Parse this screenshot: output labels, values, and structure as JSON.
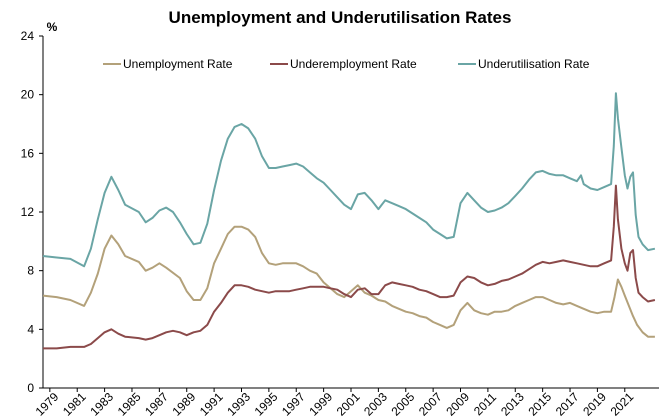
{
  "chart_data": {
    "type": "line",
    "title": "Unemployment and Underutilisation Rates",
    "y_unit": "%",
    "xlabel": "",
    "ylabel": "",
    "xlim": [
      1978.5,
      2023.5
    ],
    "ylim": [
      0,
      24
    ],
    "y_ticks": [
      0,
      4,
      8,
      12,
      16,
      20,
      24
    ],
    "x_ticks": [
      "1979",
      "1981",
      "1983",
      "1985",
      "1987",
      "1989",
      "1991",
      "1993",
      "1995",
      "1997",
      "1999",
      "2001",
      "2003",
      "2005",
      "2007",
      "2009",
      "2011",
      "2013",
      "2015",
      "2017",
      "2019",
      "2021"
    ],
    "grid": false,
    "legend_position": "top",
    "series": [
      {
        "name": "Unemployment Rate",
        "color": "#b3a17a",
        "points": [
          [
            1978.5,
            6.3
          ],
          [
            1979.5,
            6.2
          ],
          [
            1980.5,
            6.0
          ],
          [
            1981.5,
            5.6
          ],
          [
            1982.0,
            6.5
          ],
          [
            1982.5,
            7.8
          ],
          [
            1983.0,
            9.5
          ],
          [
            1983.5,
            10.4
          ],
          [
            1984.0,
            9.8
          ],
          [
            1984.5,
            9.0
          ],
          [
            1985.5,
            8.6
          ],
          [
            1986.0,
            8.0
          ],
          [
            1986.5,
            8.2
          ],
          [
            1987.0,
            8.5
          ],
          [
            1987.5,
            8.2
          ],
          [
            1988.5,
            7.5
          ],
          [
            1989.0,
            6.6
          ],
          [
            1989.5,
            6.0
          ],
          [
            1990.0,
            6.0
          ],
          [
            1990.5,
            6.8
          ],
          [
            1991.0,
            8.5
          ],
          [
            1991.5,
            9.5
          ],
          [
            1992.0,
            10.5
          ],
          [
            1992.5,
            11.0
          ],
          [
            1993.0,
            11.0
          ],
          [
            1993.5,
            10.8
          ],
          [
            1994.0,
            10.3
          ],
          [
            1994.5,
            9.2
          ],
          [
            1995.0,
            8.5
          ],
          [
            1995.5,
            8.4
          ],
          [
            1996.0,
            8.5
          ],
          [
            1996.5,
            8.5
          ],
          [
            1997.0,
            8.5
          ],
          [
            1997.5,
            8.3
          ],
          [
            1998.0,
            8.0
          ],
          [
            1998.5,
            7.8
          ],
          [
            1999.0,
            7.2
          ],
          [
            1999.5,
            6.8
          ],
          [
            2000.0,
            6.4
          ],
          [
            2000.5,
            6.2
          ],
          [
            2001.0,
            6.6
          ],
          [
            2001.5,
            7.0
          ],
          [
            2002.0,
            6.5
          ],
          [
            2002.5,
            6.3
          ],
          [
            2003.0,
            6.0
          ],
          [
            2003.5,
            5.9
          ],
          [
            2004.0,
            5.6
          ],
          [
            2004.5,
            5.4
          ],
          [
            2005.0,
            5.2
          ],
          [
            2005.5,
            5.1
          ],
          [
            2006.0,
            4.9
          ],
          [
            2006.5,
            4.8
          ],
          [
            2007.0,
            4.5
          ],
          [
            2007.5,
            4.3
          ],
          [
            2008.0,
            4.1
          ],
          [
            2008.5,
            4.3
          ],
          [
            2009.0,
            5.3
          ],
          [
            2009.5,
            5.8
          ],
          [
            2010.0,
            5.3
          ],
          [
            2010.5,
            5.1
          ],
          [
            2011.0,
            5.0
          ],
          [
            2011.5,
            5.2
          ],
          [
            2012.0,
            5.2
          ],
          [
            2012.5,
            5.3
          ],
          [
            2013.0,
            5.6
          ],
          [
            2013.5,
            5.8
          ],
          [
            2014.0,
            6.0
          ],
          [
            2014.5,
            6.2
          ],
          [
            2015.0,
            6.2
          ],
          [
            2015.5,
            6.0
          ],
          [
            2016.0,
            5.8
          ],
          [
            2016.5,
            5.7
          ],
          [
            2017.0,
            5.8
          ],
          [
            2017.5,
            5.6
          ],
          [
            2018.0,
            5.4
          ],
          [
            2018.5,
            5.2
          ],
          [
            2019.0,
            5.1
          ],
          [
            2019.5,
            5.2
          ],
          [
            2020.0,
            5.2
          ],
          [
            2020.25,
            6.2
          ],
          [
            2020.5,
            7.4
          ],
          [
            2020.75,
            6.9
          ],
          [
            2021.0,
            6.3
          ],
          [
            2021.3,
            5.6
          ],
          [
            2021.6,
            4.9
          ],
          [
            2021.9,
            4.3
          ],
          [
            2022.3,
            3.8
          ],
          [
            2022.7,
            3.5
          ],
          [
            2023.2,
            3.5
          ]
        ]
      },
      {
        "name": "Underemployment Rate",
        "color": "#8b4a4a",
        "points": [
          [
            1978.5,
            2.7
          ],
          [
            1979.5,
            2.7
          ],
          [
            1980.5,
            2.8
          ],
          [
            1981.5,
            2.8
          ],
          [
            1982.0,
            3.0
          ],
          [
            1982.5,
            3.4
          ],
          [
            1983.0,
            3.8
          ],
          [
            1983.5,
            4.0
          ],
          [
            1984.0,
            3.7
          ],
          [
            1984.5,
            3.5
          ],
          [
            1985.5,
            3.4
          ],
          [
            1986.0,
            3.3
          ],
          [
            1986.5,
            3.4
          ],
          [
            1987.0,
            3.6
          ],
          [
            1987.5,
            3.8
          ],
          [
            1988.0,
            3.9
          ],
          [
            1988.5,
            3.8
          ],
          [
            1989.0,
            3.6
          ],
          [
            1989.5,
            3.8
          ],
          [
            1990.0,
            3.9
          ],
          [
            1990.5,
            4.3
          ],
          [
            1991.0,
            5.2
          ],
          [
            1991.5,
            5.8
          ],
          [
            1992.0,
            6.5
          ],
          [
            1992.5,
            7.0
          ],
          [
            1993.0,
            7.0
          ],
          [
            1993.5,
            6.9
          ],
          [
            1994.0,
            6.7
          ],
          [
            1994.5,
            6.6
          ],
          [
            1995.0,
            6.5
          ],
          [
            1995.5,
            6.6
          ],
          [
            1996.0,
            6.6
          ],
          [
            1996.5,
            6.6
          ],
          [
            1997.0,
            6.7
          ],
          [
            1997.5,
            6.8
          ],
          [
            1998.0,
            6.9
          ],
          [
            1998.5,
            6.9
          ],
          [
            1999.0,
            6.9
          ],
          [
            1999.5,
            6.8
          ],
          [
            2000.0,
            6.7
          ],
          [
            2000.5,
            6.4
          ],
          [
            2001.0,
            6.2
          ],
          [
            2001.5,
            6.7
          ],
          [
            2002.0,
            6.8
          ],
          [
            2002.5,
            6.4
          ],
          [
            2003.0,
            6.4
          ],
          [
            2003.5,
            7.0
          ],
          [
            2004.0,
            7.2
          ],
          [
            2004.5,
            7.1
          ],
          [
            2005.0,
            7.0
          ],
          [
            2005.5,
            6.9
          ],
          [
            2006.0,
            6.7
          ],
          [
            2006.5,
            6.6
          ],
          [
            2007.0,
            6.4
          ],
          [
            2007.5,
            6.2
          ],
          [
            2008.0,
            6.2
          ],
          [
            2008.5,
            6.3
          ],
          [
            2009.0,
            7.2
          ],
          [
            2009.5,
            7.6
          ],
          [
            2010.0,
            7.5
          ],
          [
            2010.5,
            7.2
          ],
          [
            2011.0,
            7.0
          ],
          [
            2011.5,
            7.1
          ],
          [
            2012.0,
            7.3
          ],
          [
            2012.5,
            7.4
          ],
          [
            2013.0,
            7.6
          ],
          [
            2013.5,
            7.8
          ],
          [
            2014.0,
            8.1
          ],
          [
            2014.5,
            8.4
          ],
          [
            2015.0,
            8.6
          ],
          [
            2015.5,
            8.5
          ],
          [
            2016.0,
            8.6
          ],
          [
            2016.5,
            8.7
          ],
          [
            2017.0,
            8.6
          ],
          [
            2017.5,
            8.5
          ],
          [
            2018.0,
            8.4
          ],
          [
            2018.5,
            8.3
          ],
          [
            2019.0,
            8.3
          ],
          [
            2019.5,
            8.5
          ],
          [
            2020.0,
            8.7
          ],
          [
            2020.2,
            11.0
          ],
          [
            2020.35,
            13.8
          ],
          [
            2020.5,
            11.5
          ],
          [
            2020.75,
            9.5
          ],
          [
            2021.0,
            8.5
          ],
          [
            2021.2,
            8.0
          ],
          [
            2021.4,
            9.2
          ],
          [
            2021.6,
            9.4
          ],
          [
            2021.8,
            7.5
          ],
          [
            2022.0,
            6.5
          ],
          [
            2022.3,
            6.2
          ],
          [
            2022.7,
            5.9
          ],
          [
            2023.2,
            6.0
          ]
        ]
      },
      {
        "name": "Underutilisation Rate",
        "color": "#6aa5a5",
        "points": [
          [
            1978.5,
            9.0
          ],
          [
            1979.5,
            8.9
          ],
          [
            1980.5,
            8.8
          ],
          [
            1981.5,
            8.3
          ],
          [
            1982.0,
            9.5
          ],
          [
            1982.5,
            11.5
          ],
          [
            1983.0,
            13.3
          ],
          [
            1983.5,
            14.4
          ],
          [
            1984.0,
            13.5
          ],
          [
            1984.5,
            12.5
          ],
          [
            1985.5,
            12.0
          ],
          [
            1986.0,
            11.3
          ],
          [
            1986.5,
            11.6
          ],
          [
            1987.0,
            12.1
          ],
          [
            1987.5,
            12.3
          ],
          [
            1988.0,
            12.0
          ],
          [
            1988.5,
            11.3
          ],
          [
            1989.0,
            10.5
          ],
          [
            1989.5,
            9.8
          ],
          [
            1990.0,
            9.9
          ],
          [
            1990.5,
            11.2
          ],
          [
            1991.0,
            13.5
          ],
          [
            1991.5,
            15.5
          ],
          [
            1992.0,
            17.0
          ],
          [
            1992.5,
            17.8
          ],
          [
            1993.0,
            18.0
          ],
          [
            1993.5,
            17.7
          ],
          [
            1994.0,
            17.0
          ],
          [
            1994.5,
            15.8
          ],
          [
            1995.0,
            15.0
          ],
          [
            1995.5,
            15.0
          ],
          [
            1996.0,
            15.1
          ],
          [
            1996.5,
            15.2
          ],
          [
            1997.0,
            15.3
          ],
          [
            1997.5,
            15.1
          ],
          [
            1998.0,
            14.7
          ],
          [
            1998.5,
            14.3
          ],
          [
            1999.0,
            14.0
          ],
          [
            1999.5,
            13.5
          ],
          [
            2000.0,
            13.0
          ],
          [
            2000.5,
            12.5
          ],
          [
            2001.0,
            12.2
          ],
          [
            2001.5,
            13.2
          ],
          [
            2002.0,
            13.3
          ],
          [
            2002.5,
            12.8
          ],
          [
            2003.0,
            12.2
          ],
          [
            2003.5,
            12.8
          ],
          [
            2004.0,
            12.6
          ],
          [
            2004.5,
            12.4
          ],
          [
            2005.0,
            12.2
          ],
          [
            2005.5,
            11.9
          ],
          [
            2006.0,
            11.6
          ],
          [
            2006.5,
            11.3
          ],
          [
            2007.0,
            10.8
          ],
          [
            2007.5,
            10.5
          ],
          [
            2008.0,
            10.2
          ],
          [
            2008.5,
            10.3
          ],
          [
            2009.0,
            12.6
          ],
          [
            2009.5,
            13.3
          ],
          [
            2010.0,
            12.8
          ],
          [
            2010.5,
            12.3
          ],
          [
            2011.0,
            12.0
          ],
          [
            2011.5,
            12.1
          ],
          [
            2012.0,
            12.3
          ],
          [
            2012.5,
            12.6
          ],
          [
            2013.0,
            13.1
          ],
          [
            2013.5,
            13.6
          ],
          [
            2014.0,
            14.2
          ],
          [
            2014.5,
            14.7
          ],
          [
            2015.0,
            14.8
          ],
          [
            2015.5,
            14.6
          ],
          [
            2016.0,
            14.5
          ],
          [
            2016.5,
            14.5
          ],
          [
            2017.0,
            14.3
          ],
          [
            2017.5,
            14.1
          ],
          [
            2017.8,
            14.5
          ],
          [
            2018.0,
            13.9
          ],
          [
            2018.5,
            13.6
          ],
          [
            2019.0,
            13.5
          ],
          [
            2019.5,
            13.7
          ],
          [
            2020.0,
            13.9
          ],
          [
            2020.2,
            16.5
          ],
          [
            2020.35,
            20.1
          ],
          [
            2020.5,
            18.4
          ],
          [
            2020.75,
            16.4
          ],
          [
            2021.0,
            14.5
          ],
          [
            2021.2,
            13.6
          ],
          [
            2021.4,
            14.4
          ],
          [
            2021.6,
            14.7
          ],
          [
            2021.8,
            11.8
          ],
          [
            2022.0,
            10.3
          ],
          [
            2022.3,
            9.8
          ],
          [
            2022.7,
            9.4
          ],
          [
            2023.2,
            9.5
          ]
        ]
      }
    ]
  }
}
